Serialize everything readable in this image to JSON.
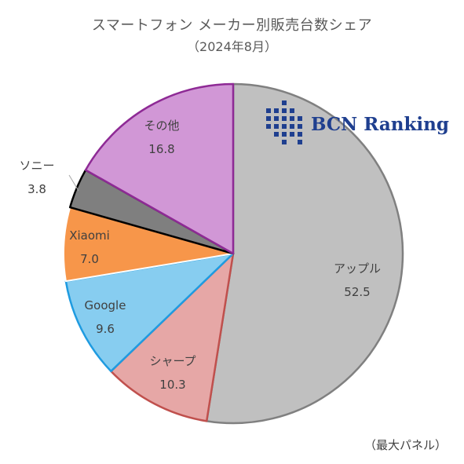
{
  "chart_data": {
    "type": "pie",
    "title": "スマートフォン メーカー別販売台数シェア",
    "subtitle": "（2024年8月）",
    "start_angle_deg": 0,
    "direction": "clockwise",
    "slices": [
      {
        "label": "アップル",
        "value": 52.5,
        "color": "#c0c0c0",
        "edge": "#808080"
      },
      {
        "label": "シャープ",
        "value": 10.3,
        "color": "#e6a7a6",
        "edge": "#c0504d"
      },
      {
        "label": "Google",
        "value": 9.6,
        "color": "#87cdf0",
        "edge": "#1f9be0"
      },
      {
        "label": "Xiaomi",
        "value": 7.0,
        "color": "#f7964a",
        "edge": "#ffffff"
      },
      {
        "label": "ソニー",
        "value": 3.8,
        "color": "#7f7f7f",
        "edge": "#000000"
      },
      {
        "label": "その他",
        "value": 16.8,
        "color": "#d197d6",
        "edge": "#8e2a95"
      }
    ],
    "logo_text": "BCN Ranking",
    "footnote": "（最大パネル）"
  }
}
